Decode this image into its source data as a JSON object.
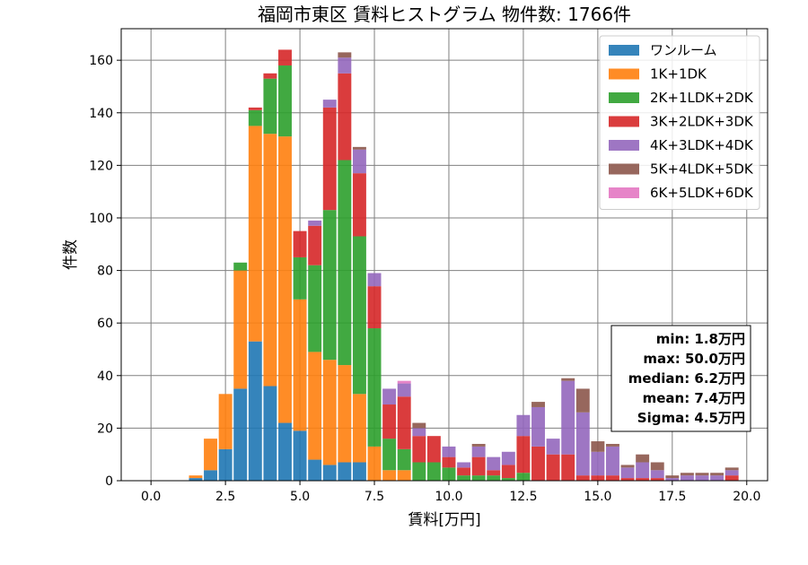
{
  "chart_data": {
    "type": "bar",
    "stacked": true,
    "title": "福岡市東区 賃料ヒストグラム 物件数: 1766件",
    "xlabel": "賃料[万円]",
    "ylabel": "件数",
    "xlim": [
      -1.0,
      20.7
    ],
    "ylim": [
      0,
      172
    ],
    "x_ticks": [
      0.0,
      2.5,
      5.0,
      7.5,
      10.0,
      12.5,
      15.0,
      17.5,
      20.0
    ],
    "x_tick_labels": [
      "0.0",
      "2.5",
      "5.0",
      "7.5",
      "10.0",
      "12.5",
      "15.0",
      "17.5",
      "20.0"
    ],
    "y_ticks": [
      0,
      20,
      40,
      60,
      80,
      100,
      120,
      140,
      160
    ],
    "y_tick_labels": [
      "0",
      "20",
      "40",
      "60",
      "80",
      "100",
      "120",
      "140",
      "160"
    ],
    "grid": true,
    "legend_position": "top-right",
    "bin_width": 0.5,
    "bar_width": 0.45,
    "x": [
      1.5,
      2.0,
      2.5,
      3.0,
      3.5,
      4.0,
      4.5,
      5.0,
      5.5,
      6.0,
      6.5,
      7.0,
      7.5,
      8.0,
      8.5,
      9.0,
      9.5,
      10.0,
      10.5,
      11.0,
      11.5,
      12.0,
      12.5,
      13.0,
      13.5,
      14.0,
      14.5,
      15.0,
      15.5,
      16.0,
      16.5,
      17.0,
      17.5,
      18.0,
      18.5,
      19.0,
      19.5
    ],
    "series": [
      {
        "name": "ワンルーム",
        "color": "#1f77b4",
        "values": [
          1,
          4,
          12,
          35,
          53,
          36,
          22,
          19,
          8,
          6,
          7,
          7,
          0,
          0,
          0,
          0,
          0,
          0,
          0,
          0,
          0,
          0,
          0,
          0,
          0,
          0,
          0,
          0,
          0,
          0,
          0,
          0,
          0,
          0,
          0,
          0,
          0
        ]
      },
      {
        "name": "1K+1DK",
        "color": "#ff7f0e",
        "values": [
          1,
          12,
          21,
          45,
          82,
          96,
          109,
          50,
          41,
          40,
          37,
          26,
          13,
          4,
          4,
          0,
          0,
          0,
          0,
          0,
          0,
          0,
          0,
          0,
          0,
          0,
          0,
          0,
          0,
          0,
          0,
          0,
          0,
          0,
          0,
          0,
          0
        ]
      },
      {
        "name": "2K+1LDK+2DK",
        "color": "#2ca02c",
        "values": [
          0,
          0,
          0,
          3,
          6,
          21,
          27,
          16,
          33,
          57,
          78,
          60,
          45,
          12,
          8,
          7,
          7,
          5,
          2,
          2,
          2,
          1,
          3,
          0,
          0,
          0,
          0,
          0,
          0,
          0,
          0,
          0,
          0,
          0,
          0,
          0,
          0
        ]
      },
      {
        "name": "3K+2LDK+3DK",
        "color": "#d62728",
        "values": [
          0,
          0,
          0,
          0,
          1,
          2,
          6,
          10,
          15,
          39,
          33,
          24,
          16,
          13,
          20,
          10,
          10,
          4,
          3,
          7,
          2,
          5,
          14,
          13,
          10,
          10,
          2,
          2,
          2,
          1,
          1,
          1,
          0,
          0,
          0,
          0,
          2
        ]
      },
      {
        "name": "4K+3LDK+4DK",
        "color": "#9467bd",
        "values": [
          0,
          0,
          0,
          0,
          0,
          0,
          0,
          0,
          2,
          3,
          6,
          9,
          5,
          6,
          5,
          3,
          0,
          4,
          2,
          4,
          5,
          5,
          8,
          15,
          6,
          28,
          24,
          9,
          11,
          4,
          6,
          3,
          1,
          2,
          2,
          2,
          2
        ]
      },
      {
        "name": "5K+4LDK+5DK",
        "color": "#8c564b",
        "values": [
          0,
          0,
          0,
          0,
          0,
          0,
          0,
          0,
          0,
          0,
          2,
          1,
          0,
          0,
          0,
          2,
          0,
          0,
          0,
          1,
          0,
          0,
          0,
          2,
          0,
          1,
          9,
          4,
          1,
          1,
          3,
          3,
          1,
          1,
          1,
          1,
          1
        ]
      },
      {
        "name": "6K+5LDK+6DK",
        "color": "#e377c2",
        "values": [
          0,
          0,
          0,
          0,
          0,
          0,
          0,
          0,
          0,
          0,
          0,
          0,
          0,
          0,
          1,
          0,
          0,
          0,
          0,
          0,
          0,
          0,
          0,
          0,
          0,
          0,
          0,
          0,
          0,
          0,
          0,
          0,
          0,
          0,
          0,
          0,
          0
        ]
      }
    ],
    "stats": {
      "lines": [
        "min: 1.8万円",
        "max: 50.0万円",
        "median: 6.2万円",
        "mean: 7.4万円",
        "Sigma: 4.5万円"
      ]
    }
  }
}
